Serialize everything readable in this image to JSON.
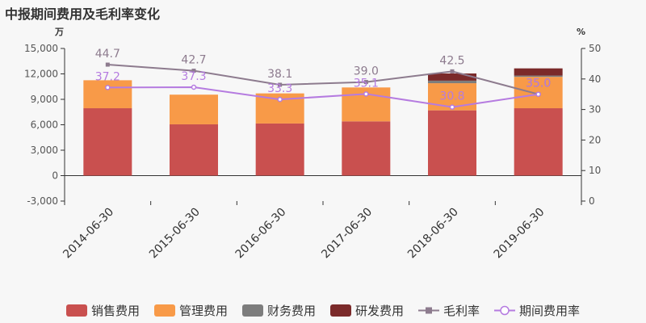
{
  "title": "中报期间费用及毛利率变化",
  "chart_data": {
    "type": "bar",
    "title": "中报期间费用及毛利率变化",
    "categories": [
      "2014-06-30",
      "2015-06-30",
      "2016-06-30",
      "2017-06-30",
      "2018-06-30",
      "2019-06-30"
    ],
    "left_axis": {
      "unit": "万",
      "min": -3000,
      "max": 15000,
      "ticks": [
        "-3,000",
        "0",
        "3,000",
        "6,000",
        "9,000",
        "12,000",
        "15,000"
      ]
    },
    "right_axis": {
      "unit": "%",
      "min": 0,
      "max": 50,
      "ticks": [
        "0",
        "10",
        "20",
        "30",
        "40",
        "50"
      ]
    },
    "stacked_series": [
      {
        "name": "销售费用",
        "color": "#c9504f",
        "values": [
          7950,
          6050,
          6150,
          6400,
          7700,
          7950
        ]
      },
      {
        "name": "管理费用",
        "color": "#f89a48",
        "values": [
          3300,
          3500,
          3550,
          4000,
          3200,
          3700
        ]
      },
      {
        "name": "财务费用",
        "color": "#7d7d7d",
        "values": [
          0,
          0,
          0,
          0,
          300,
          150
        ]
      },
      {
        "name": "研发费用",
        "color": "#7b2a2a",
        "values": [
          0,
          0,
          0,
          0,
          850,
          850
        ]
      }
    ],
    "line_series": [
      {
        "name": "毛利率",
        "color": "#8d7b8e",
        "marker": "square",
        "values": [
          44.7,
          42.7,
          38.1,
          39.0,
          42.5,
          35.0
        ],
        "labels": [
          "44.7",
          "42.7",
          "38.1",
          "39.0",
          "42.5",
          "35.0"
        ]
      },
      {
        "name": "期间费用率",
        "color": "#b57be0",
        "marker": "circle",
        "values": [
          37.2,
          37.3,
          33.3,
          35.1,
          30.8,
          35.0
        ],
        "labels": [
          "37.2",
          "37.3",
          "33.3",
          "35.1",
          "30.8",
          "35.0"
        ]
      }
    ],
    "legend_position": "bottom"
  }
}
